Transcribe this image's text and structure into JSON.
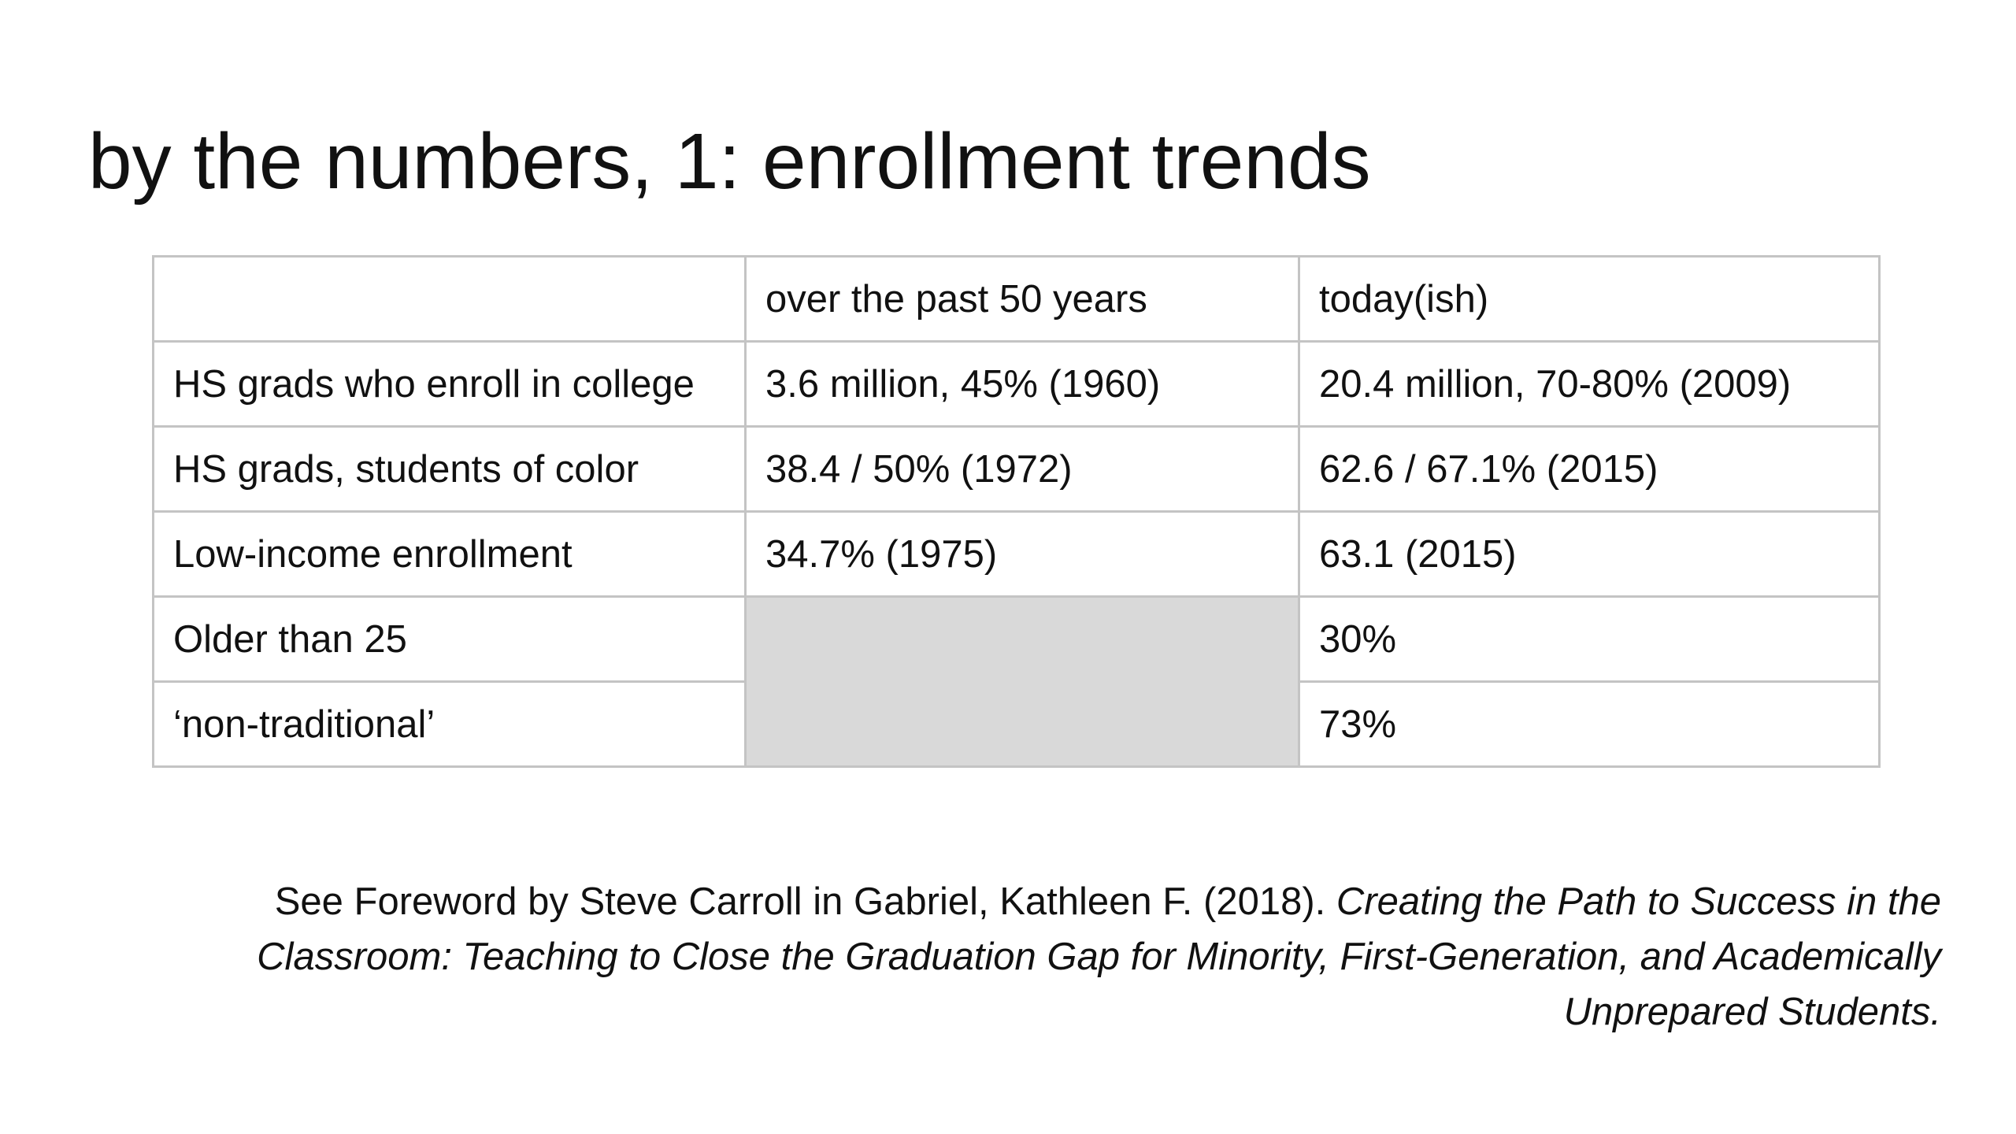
{
  "title": "by the numbers, 1: enrollment trends",
  "table": {
    "headers": [
      "",
      "over the past 50 years",
      "today(ish)"
    ],
    "rows": [
      [
        "HS grads who enroll in college",
        "3.6 million, 45% (1960)",
        "20.4 million, 70-80% (2009)"
      ],
      [
        "HS grads, students of color",
        "38.4 / 50% (1972)",
        "62.6 / 67.1% (2015)"
      ],
      [
        "Low-income enrollment",
        "34.7% (1975)",
        "63.1 (2015)"
      ],
      [
        "Older than 25",
        "",
        "30%"
      ],
      [
        "‘non-traditional’",
        "",
        "73%"
      ]
    ],
    "shaded_cell_color": "#d9d9d9",
    "border_color": "#c4c4c4"
  },
  "citation": {
    "prefix": "See Foreword by Steve Carroll in Gabriel, Kathleen F. (2018). ",
    "book_title": "Creating the Path to Success in the Classroom: Teaching to Close the Graduation Gap for Minority, First-Generation, and Academically Unprepared Students."
  }
}
